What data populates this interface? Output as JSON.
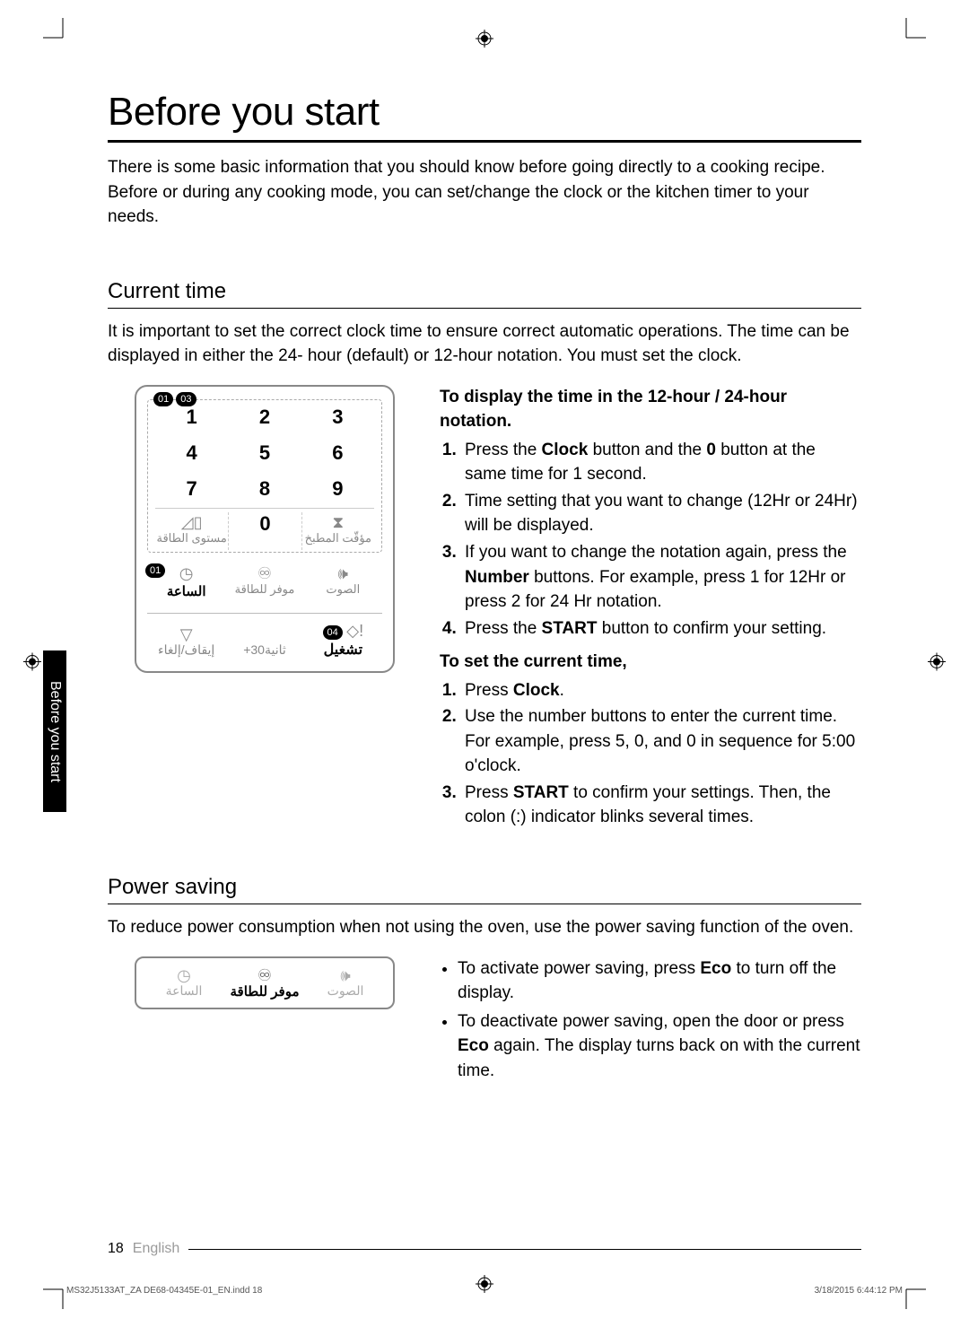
{
  "title": "Before you start",
  "intro": "There is some basic information that you should know before going directly to a cooking recipe. Before or during any cooking mode, you can set/change the clock or the kitchen timer to your needs.",
  "sidebar_tab": "Before you start",
  "section1": {
    "heading": "Current time",
    "intro": "It is important to set the correct clock time to ensure correct automatic operations. The time can be displayed in either the 24- hour (default) or 12-hour notation. You must set the clock.",
    "sub1_head": "To display the time in the 12-hour / 24-hour notation.",
    "sub1_steps": [
      "Press the <b>Clock</b> button and the <b>0</b> button at the same time for 1 second.",
      "Time setting that you want to change (12Hr or 24Hr) will be displayed.",
      "If you want to change the notation again, press the <b>Number</b> buttons. For example, press 1 for 12Hr or press 2 for 24 Hr notation.",
      "Press the <b>START</b> button to confirm your setting."
    ],
    "sub2_head": "To set the current time,",
    "sub2_steps": [
      "Press <b>Clock</b>.",
      "Use the number buttons to enter the current time. For example, press 5, 0, and 0 in sequence for 5:00 o'clock.",
      "Press <b>START</b> to confirm your settings. Then, the colon (:) indicator blinks several times."
    ]
  },
  "section2": {
    "heading": "Power saving",
    "intro": "To reduce power consumption when not using the oven, use the power saving function of the oven.",
    "bullets": [
      "To activate power saving, press <b>Eco</b> to turn off the display.",
      "To deactivate power saving, open the door or press <b>Eco</b> again. The display turns back on with the current time."
    ]
  },
  "keypad": {
    "badges_top": [
      "01",
      "03"
    ],
    "numbers": [
      "1",
      "2",
      "3",
      "4",
      "5",
      "6",
      "7",
      "8",
      "9"
    ],
    "zero": "0",
    "power_level_ar": "مستوى الطاقة",
    "kitchen_timer_ar": "مؤقّت المطبخ",
    "clock_badge": "01",
    "clock_ar": "الساعة",
    "eco_ar": "موفر للطاقة",
    "sound_ar": "الصوت",
    "stop_ar": "إيقاف/إلغاء",
    "plus30_ar": "‎+30ثانية",
    "start_badge": "04",
    "start_ar": "تشغيل"
  },
  "mini_panel": {
    "clock_ar": "الساعة",
    "eco_ar": "موفر للطاقة",
    "sound_ar": "الصوت"
  },
  "footer": {
    "page": "18",
    "lang": "English"
  },
  "imprint": {
    "left": "MS32J5133AT_ZA DE68-04345E-01_EN.indd   18",
    "right": "3/18/2015   6:44:12 PM"
  }
}
